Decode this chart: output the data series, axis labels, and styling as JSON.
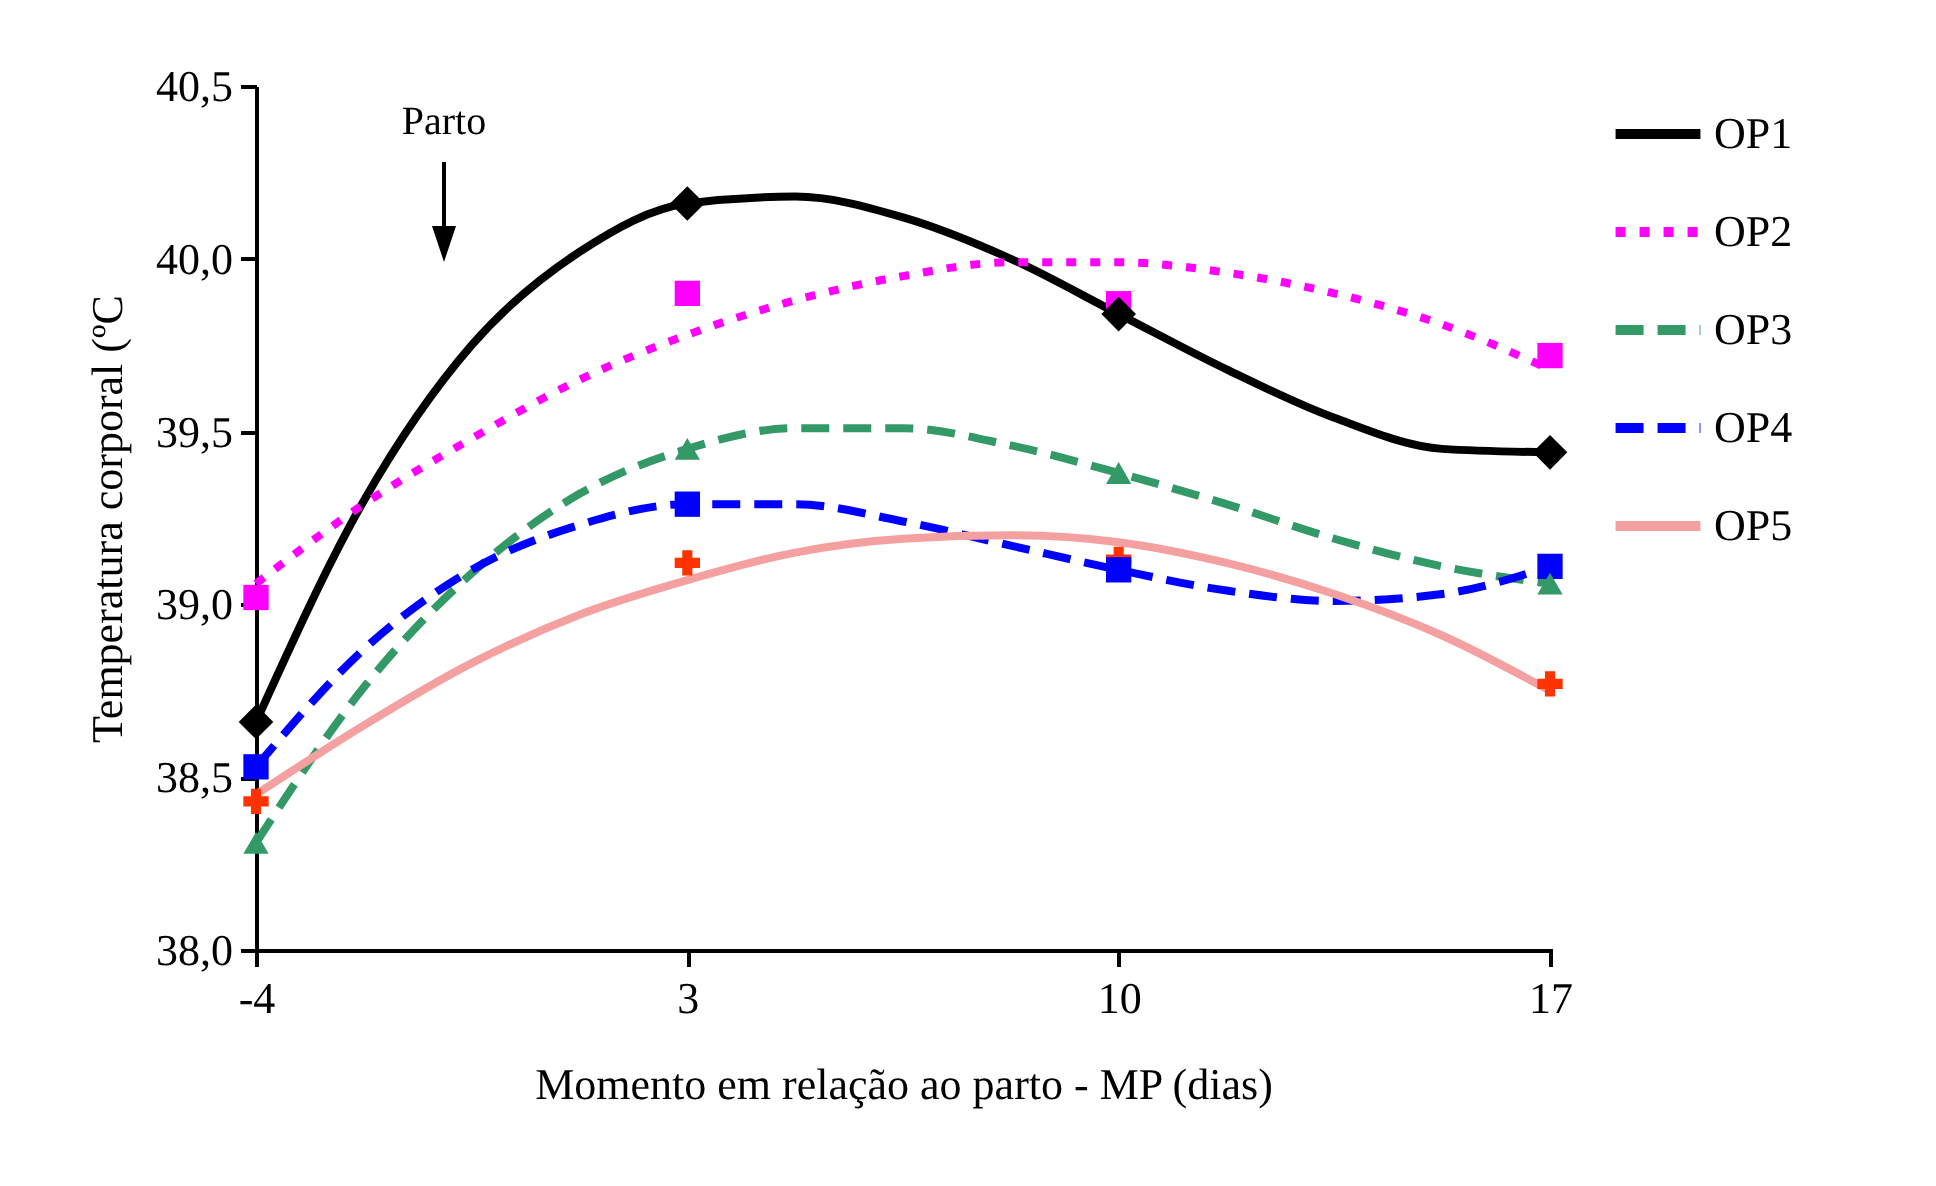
{
  "chart_data": {
    "type": "line",
    "xlabel": "Momento em  relação ao parto - MP (dias)",
    "ylabel": "Temperatura corporal (ºC",
    "xlim": [
      -4,
      17
    ],
    "xticks": [
      -4,
      3,
      10,
      17
    ],
    "ylim": [
      38,
      40.5
    ],
    "yticks": [
      {
        "value": 38,
        "label": "38,0"
      },
      {
        "value": 38.5,
        "label": "38,5"
      },
      {
        "value": 39,
        "label": "39,0"
      },
      {
        "value": 39.5,
        "label": "39,5"
      },
      {
        "value": 40,
        "label": "40,0"
      },
      {
        "value": 40.5,
        "label": "40,5"
      }
    ],
    "grid": false,
    "legend": "top right",
    "annotations": [
      "Parto"
    ],
    "series": [
      {
        "name": "OP1",
        "color": "#000000",
        "line_style": "solid",
        "x": [
          -4,
          -2.25,
          -0.5,
          1.25,
          3,
          4.75,
          6.5,
          8.25,
          10,
          11.75,
          13.5,
          15.25,
          17
        ],
        "values": [
          38.66,
          39.3,
          39.75,
          40.02,
          40.16,
          40.18,
          40.12,
          40.0,
          39.84,
          39.68,
          39.54,
          39.45,
          39.44
        ]
      },
      {
        "name": "OP2",
        "color": "#ff00ff",
        "line_style": "dotted",
        "x": [
          -4,
          -2.25,
          -0.5,
          1.25,
          3,
          4.75,
          6.5,
          8.25,
          10,
          11.75,
          13.5,
          15.25,
          17
        ],
        "values": [
          39.06,
          39.29,
          39.48,
          39.65,
          39.78,
          39.88,
          39.95,
          39.99,
          39.99,
          39.96,
          39.9,
          39.81,
          39.68
        ]
      },
      {
        "name": "OP3",
        "color": "#339966",
        "line_style": "dashed",
        "x": [
          -4,
          -2.25,
          -0.5,
          1.25,
          3,
          4.75,
          6.5,
          8.25,
          10,
          11.75,
          13.5,
          15.25,
          17
        ],
        "values": [
          38.31,
          38.76,
          39.09,
          39.32,
          39.45,
          39.51,
          39.51,
          39.46,
          39.38,
          39.29,
          39.19,
          39.11,
          39.06
        ]
      },
      {
        "name": "OP4",
        "color": "#0000ff",
        "line_style": "dashed",
        "x": [
          -4,
          -2.25,
          -0.5,
          1.25,
          3,
          4.75,
          6.5,
          8.25,
          10,
          11.75,
          13.5,
          15.25,
          17
        ],
        "values": [
          38.53,
          38.87,
          39.1,
          39.23,
          39.29,
          39.29,
          39.24,
          39.17,
          39.1,
          39.04,
          39.01,
          39.03,
          39.11
        ]
      },
      {
        "name": "OP5",
        "color": "#f4a0a0",
        "line_style": "solid",
        "x": [
          -4,
          -2.25,
          -0.5,
          1.25,
          3,
          4.75,
          6.5,
          8.25,
          10,
          11.75,
          13.5,
          15.25,
          17
        ],
        "values": [
          38.45,
          38.65,
          38.83,
          38.97,
          39.07,
          39.15,
          39.19,
          39.2,
          39.18,
          39.12,
          39.03,
          38.91,
          38.75
        ]
      },
      {
        "type": "scatter",
        "color": "#000000",
        "marker": "diamond",
        "x": [
          -4,
          3,
          10,
          17
        ],
        "values": [
          38.66,
          40.16,
          39.84,
          39.44
        ]
      },
      {
        "type": "scatter",
        "color": "#ff00ff",
        "marker": "square",
        "x": [
          -4,
          3,
          10,
          17
        ],
        "values": [
          39.02,
          39.9,
          39.87,
          39.72
        ]
      },
      {
        "type": "scatter",
        "color": "#339966",
        "marker": "triangle",
        "x": [
          -4,
          3,
          10,
          17
        ],
        "values": [
          38.31,
          39.45,
          39.38,
          39.06
        ]
      },
      {
        "type": "scatter",
        "color": "#0000ff",
        "marker": "square",
        "x": [
          -4,
          3,
          10,
          17
        ],
        "values": [
          38.53,
          39.29,
          39.1,
          39.11
        ]
      },
      {
        "type": "scatter",
        "color": "#ff3300",
        "marker": "cross",
        "x": [
          -4,
          3,
          10,
          17
        ],
        "values": [
          38.43,
          39.12,
          39.13,
          38.77
        ]
      }
    ]
  }
}
